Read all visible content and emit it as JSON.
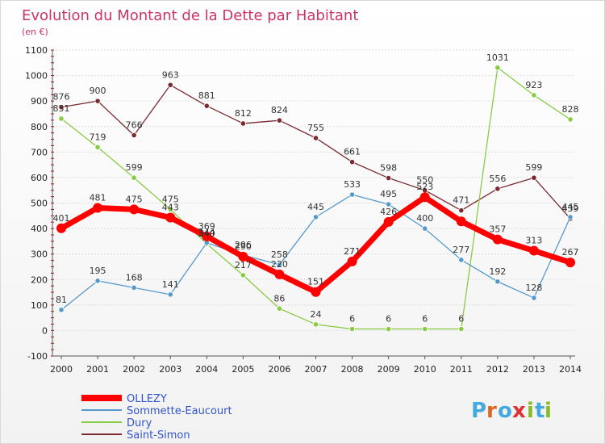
{
  "chart_data": {
    "type": "line",
    "title": "Evolution du Montant de la Dette par Habitant",
    "subtitle": "(en €)",
    "x": [
      "2000",
      "2001",
      "2002",
      "2003",
      "2004",
      "2005",
      "2006",
      "2007",
      "2008",
      "2009",
      "2010",
      "2011",
      "2012",
      "2013",
      "2014"
    ],
    "yticks": [
      "-100",
      "0",
      "100",
      "200",
      "300",
      "400",
      "500",
      "600",
      "700",
      "800",
      "900",
      "1000",
      "1100"
    ],
    "ylim": [
      -100,
      1100
    ],
    "grid": true,
    "legend_position": "bottom-left",
    "series": [
      {
        "name": "Saint-Simon",
        "color": "#7a2a30",
        "values": [
          876,
          900,
          766,
          963,
          881,
          812,
          824,
          755,
          661,
          598,
          550,
          471,
          556,
          599,
          439
        ],
        "labels": [
          "876",
          "900",
          "766",
          "963",
          "881",
          "812",
          "824",
          "755",
          "661",
          "598",
          "550",
          "471",
          "556",
          "599",
          "439"
        ]
      },
      {
        "name": "Dury",
        "color": "#88cc44",
        "values": [
          831,
          719,
          599,
          475,
          340,
          217,
          86,
          24,
          6,
          6,
          6,
          6,
          1031,
          923,
          828
        ],
        "labels": [
          "831",
          "719",
          "599",
          "475",
          "340",
          "217",
          "86",
          "24",
          "6",
          "6",
          "6",
          "6",
          "1031",
          "923",
          "828"
        ]
      },
      {
        "name": "Sommette-Eaucourt",
        "color": "#5599cc",
        "values": [
          81,
          195,
          168,
          141,
          344,
          296,
          258,
          445,
          533,
          495,
          400,
          277,
          192,
          128,
          445
        ],
        "labels": [
          "81",
          "195",
          "168",
          "141",
          "344",
          "296",
          "258",
          "445",
          "533",
          "495",
          "400",
          "277",
          "192",
          "128",
          "445"
        ]
      },
      {
        "name": "OLLEZY",
        "color": "#ff0000",
        "values": [
          401,
          481,
          475,
          443,
          369,
          290,
          220,
          151,
          271,
          426,
          523,
          428,
          357,
          313,
          267
        ],
        "labels": [
          "401",
          "481",
          "475",
          "443",
          "369",
          "290",
          "220",
          "151",
          "271",
          "426",
          "523",
          "",
          "357",
          "313",
          "267"
        ]
      }
    ],
    "legend": [
      "OLLEZY",
      "Sommette-Eaucourt",
      "Dury",
      "Saint-Simon"
    ]
  },
  "logo": {
    "letters": [
      "P",
      "r",
      "o",
      "x",
      "i",
      "t",
      "i"
    ],
    "colors": [
      "#44aadd",
      "#dd6622",
      "#44aadd",
      "#dd3333",
      "#88bb22",
      "#44aadd",
      "#88bb22"
    ]
  }
}
